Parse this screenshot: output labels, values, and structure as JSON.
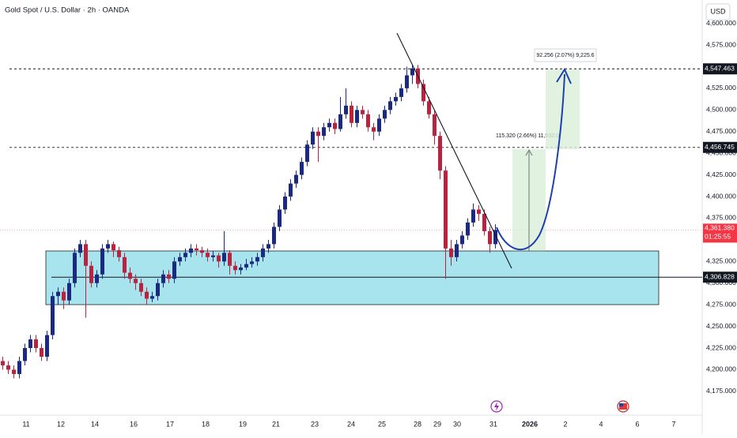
{
  "chart_data": {
    "type": "candlestick",
    "title": "Gold Spot / U.S. Dollar · 2h · OANDA",
    "currency": "USD",
    "up_color": "#1b2a80",
    "down_color": "#b8233f",
    "ylim": [
      4153,
      4627
    ],
    "yticks": [
      {
        "value": 4175,
        "label": "4,175.000"
      },
      {
        "value": 4200,
        "label": "4,200.000"
      },
      {
        "value": 4225,
        "label": "4,225.000"
      },
      {
        "value": 4250,
        "label": "4,250.000"
      },
      {
        "value": 4275,
        "label": "4,275.000"
      },
      {
        "value": 4300,
        "label": "4,300.000"
      },
      {
        "value": 4325,
        "label": "4,325.000"
      },
      {
        "value": 4350,
        "label": "4,350.000"
      },
      {
        "value": 4375,
        "label": "4,375.000"
      },
      {
        "value": 4400,
        "label": "4,400.000"
      },
      {
        "value": 4425,
        "label": "4,425.000"
      },
      {
        "value": 4450,
        "label": "4,450.000"
      },
      {
        "value": 4475,
        "label": "4,475.000"
      },
      {
        "value": 4500,
        "label": "4,500.000"
      },
      {
        "value": 4525,
        "label": "4,525.000"
      },
      {
        "value": 4550,
        "label": "4,550.000"
      },
      {
        "value": 4575,
        "label": "4,575.000"
      },
      {
        "value": 4600,
        "label": "4,600.000"
      }
    ],
    "x_labels": [
      "11",
      "12",
      "14",
      "16",
      "17",
      "18",
      "19",
      "21",
      "23",
      "24",
      "25",
      "28",
      "29",
      "30",
      "31",
      "2026",
      "2",
      "4",
      "6",
      "7"
    ],
    "price_levels": [
      {
        "value": 4547.463,
        "label": "4,547.463",
        "style": "dashed"
      },
      {
        "value": 4456.745,
        "label": "4,456.745",
        "style": "dashed"
      },
      {
        "value": 4306.828,
        "label": "4,306.828",
        "style": "solid"
      }
    ],
    "last_price": {
      "value": 4361.38,
      "label": "4,361.380"
    },
    "countdown": "01:25:55",
    "measurements": [
      "115.320 (2.66%) 11,532.0",
      "92.256 (2.07%) 9,225.6"
    ],
    "ohlc": [
      [
        4210,
        4215,
        4200,
        4205
      ],
      [
        4205,
        4210,
        4195,
        4200
      ],
      [
        4200,
        4205,
        4190,
        4195
      ],
      [
        4195,
        4215,
        4190,
        4210
      ],
      [
        4210,
        4230,
        4205,
        4225
      ],
      [
        4225,
        4240,
        4220,
        4235
      ],
      [
        4235,
        4240,
        4220,
        4225
      ],
      [
        4225,
        4230,
        4210,
        4215
      ],
      [
        4215,
        4245,
        4210,
        4240
      ],
      [
        4240,
        4290,
        4235,
        4285
      ],
      [
        4285,
        4295,
        4275,
        4290
      ],
      [
        4290,
        4295,
        4270,
        4280
      ],
      [
        4280,
        4305,
        4275,
        4300
      ],
      [
        4300,
        4340,
        4295,
        4335
      ],
      [
        4335,
        4350,
        4330,
        4345
      ],
      [
        4345,
        4350,
        4260,
        4320
      ],
      [
        4320,
        4325,
        4295,
        4300
      ],
      [
        4300,
        4315,
        4295,
        4310
      ],
      [
        4310,
        4345,
        4305,
        4340
      ],
      [
        4340,
        4350,
        4335,
        4345
      ],
      [
        4345,
        4348,
        4330,
        4338
      ],
      [
        4338,
        4342,
        4325,
        4330
      ],
      [
        4330,
        4335,
        4305,
        4312
      ],
      [
        4312,
        4318,
        4300,
        4305
      ],
      [
        4305,
        4310,
        4292,
        4300
      ],
      [
        4300,
        4305,
        4285,
        4290
      ],
      [
        4290,
        4295,
        4275,
        4282
      ],
      [
        4282,
        4290,
        4278,
        4285
      ],
      [
        4285,
        4305,
        4280,
        4300
      ],
      [
        4300,
        4315,
        4295,
        4310
      ],
      [
        4310,
        4315,
        4300,
        4305
      ],
      [
        4305,
        4330,
        4300,
        4325
      ],
      [
        4325,
        4335,
        4320,
        4330
      ],
      [
        4330,
        4340,
        4325,
        4335
      ],
      [
        4335,
        4345,
        4330,
        4340
      ],
      [
        4340,
        4345,
        4332,
        4338
      ],
      [
        4338,
        4342,
        4330,
        4335
      ],
      [
        4335,
        4340,
        4325,
        4330
      ],
      [
        4330,
        4337,
        4325,
        4332
      ],
      [
        4332,
        4335,
        4318,
        4325
      ],
      [
        4325,
        4360,
        4320,
        4335
      ],
      [
        4335,
        4338,
        4310,
        4320
      ],
      [
        4320,
        4325,
        4310,
        4315
      ],
      [
        4315,
        4322,
        4310,
        4318
      ],
      [
        4318,
        4328,
        4315,
        4322
      ],
      [
        4322,
        4330,
        4318,
        4325
      ],
      [
        4325,
        4335,
        4320,
        4330
      ],
      [
        4330,
        4345,
        4325,
        4340
      ],
      [
        4340,
        4350,
        4335,
        4345
      ],
      [
        4345,
        4370,
        4340,
        4365
      ],
      [
        4365,
        4390,
        4360,
        4385
      ],
      [
        4385,
        4405,
        4380,
        4400
      ],
      [
        4400,
        4420,
        4395,
        4415
      ],
      [
        4415,
        4430,
        4410,
        4425
      ],
      [
        4425,
        4445,
        4420,
        4440
      ],
      [
        4440,
        4465,
        4435,
        4460
      ],
      [
        4460,
        4480,
        4455,
        4475
      ],
      [
        4475,
        4480,
        4440,
        4470
      ],
      [
        4470,
        4485,
        4465,
        4480
      ],
      [
        4480,
        4490,
        4475,
        4485
      ],
      [
        4485,
        4490,
        4472,
        4478
      ],
      [
        4478,
        4515,
        4475,
        4495
      ],
      [
        4495,
        4525,
        4490,
        4505
      ],
      [
        4505,
        4510,
        4480,
        4485
      ],
      [
        4485,
        4505,
        4480,
        4500
      ],
      [
        4500,
        4505,
        4490,
        4495
      ],
      [
        4495,
        4500,
        4475,
        4480
      ],
      [
        4480,
        4485,
        4465,
        4475
      ],
      [
        4475,
        4495,
        4470,
        4490
      ],
      [
        4490,
        4505,
        4485,
        4500
      ],
      [
        4500,
        4515,
        4495,
        4510
      ],
      [
        4510,
        4520,
        4505,
        4515
      ],
      [
        4515,
        4530,
        4510,
        4525
      ],
      [
        4525,
        4550,
        4520,
        4540
      ],
      [
        4540,
        4552,
        4530,
        4548
      ],
      [
        4548,
        4552,
        4525,
        4530
      ],
      [
        4530,
        4535,
        4505,
        4510
      ],
      [
        4510,
        4515,
        4490,
        4495
      ],
      [
        4495,
        4500,
        4460,
        4470
      ],
      [
        4470,
        4475,
        4420,
        4430
      ],
      [
        4430,
        4435,
        4305,
        4340
      ],
      [
        4340,
        4350,
        4320,
        4330
      ],
      [
        4330,
        4350,
        4325,
        4345
      ],
      [
        4345,
        4360,
        4340,
        4355
      ],
      [
        4355,
        4375,
        4350,
        4370
      ],
      [
        4370,
        4392,
        4365,
        4385
      ],
      [
        4385,
        4390,
        4372,
        4380
      ],
      [
        4380,
        4385,
        4355,
        4360
      ],
      [
        4360,
        4365,
        4335,
        4345
      ],
      [
        4345,
        4368,
        4340,
        4361.38
      ]
    ]
  }
}
